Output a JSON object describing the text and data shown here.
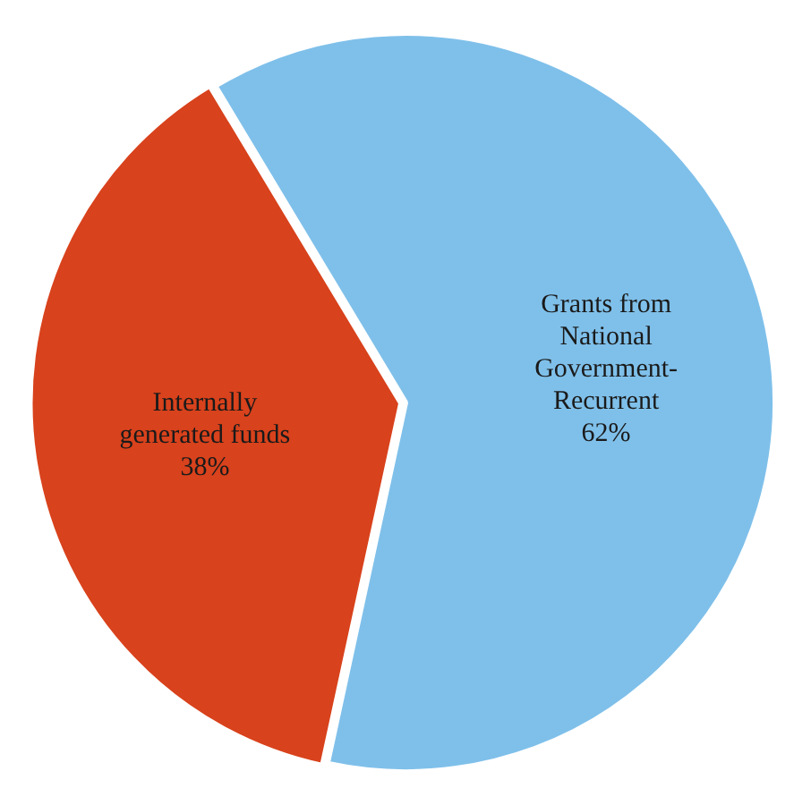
{
  "chart_data": {
    "type": "pie",
    "categories": [
      "Grants from National Government-Recurrent",
      "Internally generated funds"
    ],
    "values": [
      62,
      38
    ],
    "colors": [
      "#7fc0ea",
      "#d8421c"
    ],
    "value_labels": [
      "62%",
      "38%"
    ]
  }
}
